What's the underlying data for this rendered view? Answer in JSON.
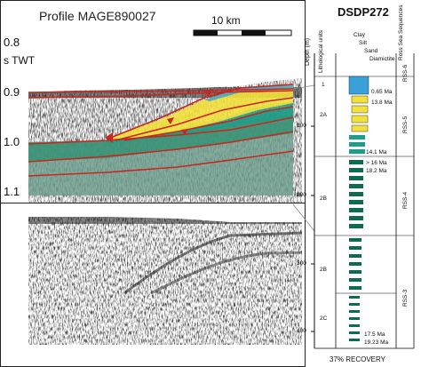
{
  "profile": {
    "title": "Profile MAGE890027",
    "scale_label": "10 km",
    "twt_ticks": [
      "0.8",
      "0.9",
      "1.0",
      "1.1"
    ],
    "twt_unit": "s TWT"
  },
  "core": {
    "title": "DSDP272",
    "depth_axis_label": "Depth (m)",
    "depth_ticks": [
      "100",
      "200",
      "300",
      "400"
    ],
    "lithological_units_label": "Lithological units",
    "lithology_columns": [
      "Clay",
      "Silt",
      "Sand",
      "Diamictite"
    ],
    "sequences_label": "Ross Sea Sequences",
    "units": [
      "1",
      "2A",
      "2B",
      "2B",
      "2C"
    ],
    "sequences": [
      "RSS-6",
      "RSS-5",
      "RSS-4",
      "RSS-3"
    ],
    "ages": [
      "0.65 Ma",
      "13.8 Ma",
      "14.1 Ma",
      "> 16 Ma",
      "18.2 Ma",
      "17.5 Ma",
      "19.23 Ma"
    ],
    "recovery": "37% RECOVERY"
  },
  "colors": {
    "rss6": "#3aa0d8",
    "rss5_upper": "#f2e13c",
    "rss5_lower": "#1e9e8a",
    "rss4": "#0e6b52",
    "deep": "#6e9e8e",
    "reflector": "#c8261e"
  }
}
